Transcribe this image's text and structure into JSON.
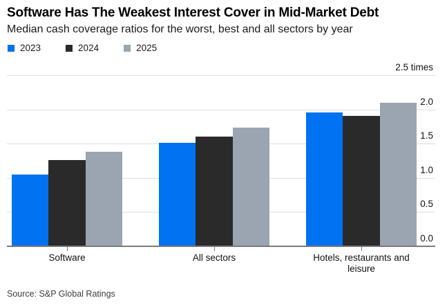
{
  "header": {
    "title": "Software Has The Weakest Interest Cover in Mid-Market Debt",
    "subtitle": "Median cash coverage ratios for the worst, best and all sectors by year"
  },
  "legend": {
    "items": [
      {
        "label": "2023",
        "color": "#0072f2"
      },
      {
        "label": "2024",
        "color": "#2a2a2a"
      },
      {
        "label": "2025",
        "color": "#9aa5b1"
      }
    ]
  },
  "chart_data": {
    "type": "bar",
    "title": "Software Has The Weakest Interest Cover in Mid-Market Debt",
    "subtitle": "Median cash coverage ratios for the worst, best and all sectors by year",
    "categories": [
      "Software",
      "All sectors",
      "Hotels, restaurants and leisure"
    ],
    "series": [
      {
        "name": "2023",
        "color": "#0072f2",
        "values": [
          1.05,
          1.51,
          1.96
        ]
      },
      {
        "name": "2024",
        "color": "#2a2a2a",
        "values": [
          1.26,
          1.6,
          1.91
        ]
      },
      {
        "name": "2025",
        "color": "#9aa5b1",
        "values": [
          1.38,
          1.73,
          2.1
        ]
      }
    ],
    "xlabel": "",
    "ylabel": "",
    "unit_suffix": " times",
    "ylim": [
      0,
      2.5
    ],
    "ytick_step": 0.5,
    "ytick_labels": [
      "0.0",
      "0.5",
      "1.0",
      "1.5",
      "2.0",
      "2.5 times"
    ],
    "grid": true,
    "legend_position": "top-left",
    "value_axis_side": "right"
  },
  "footer": {
    "source": "Source: S&P Global Ratings"
  }
}
